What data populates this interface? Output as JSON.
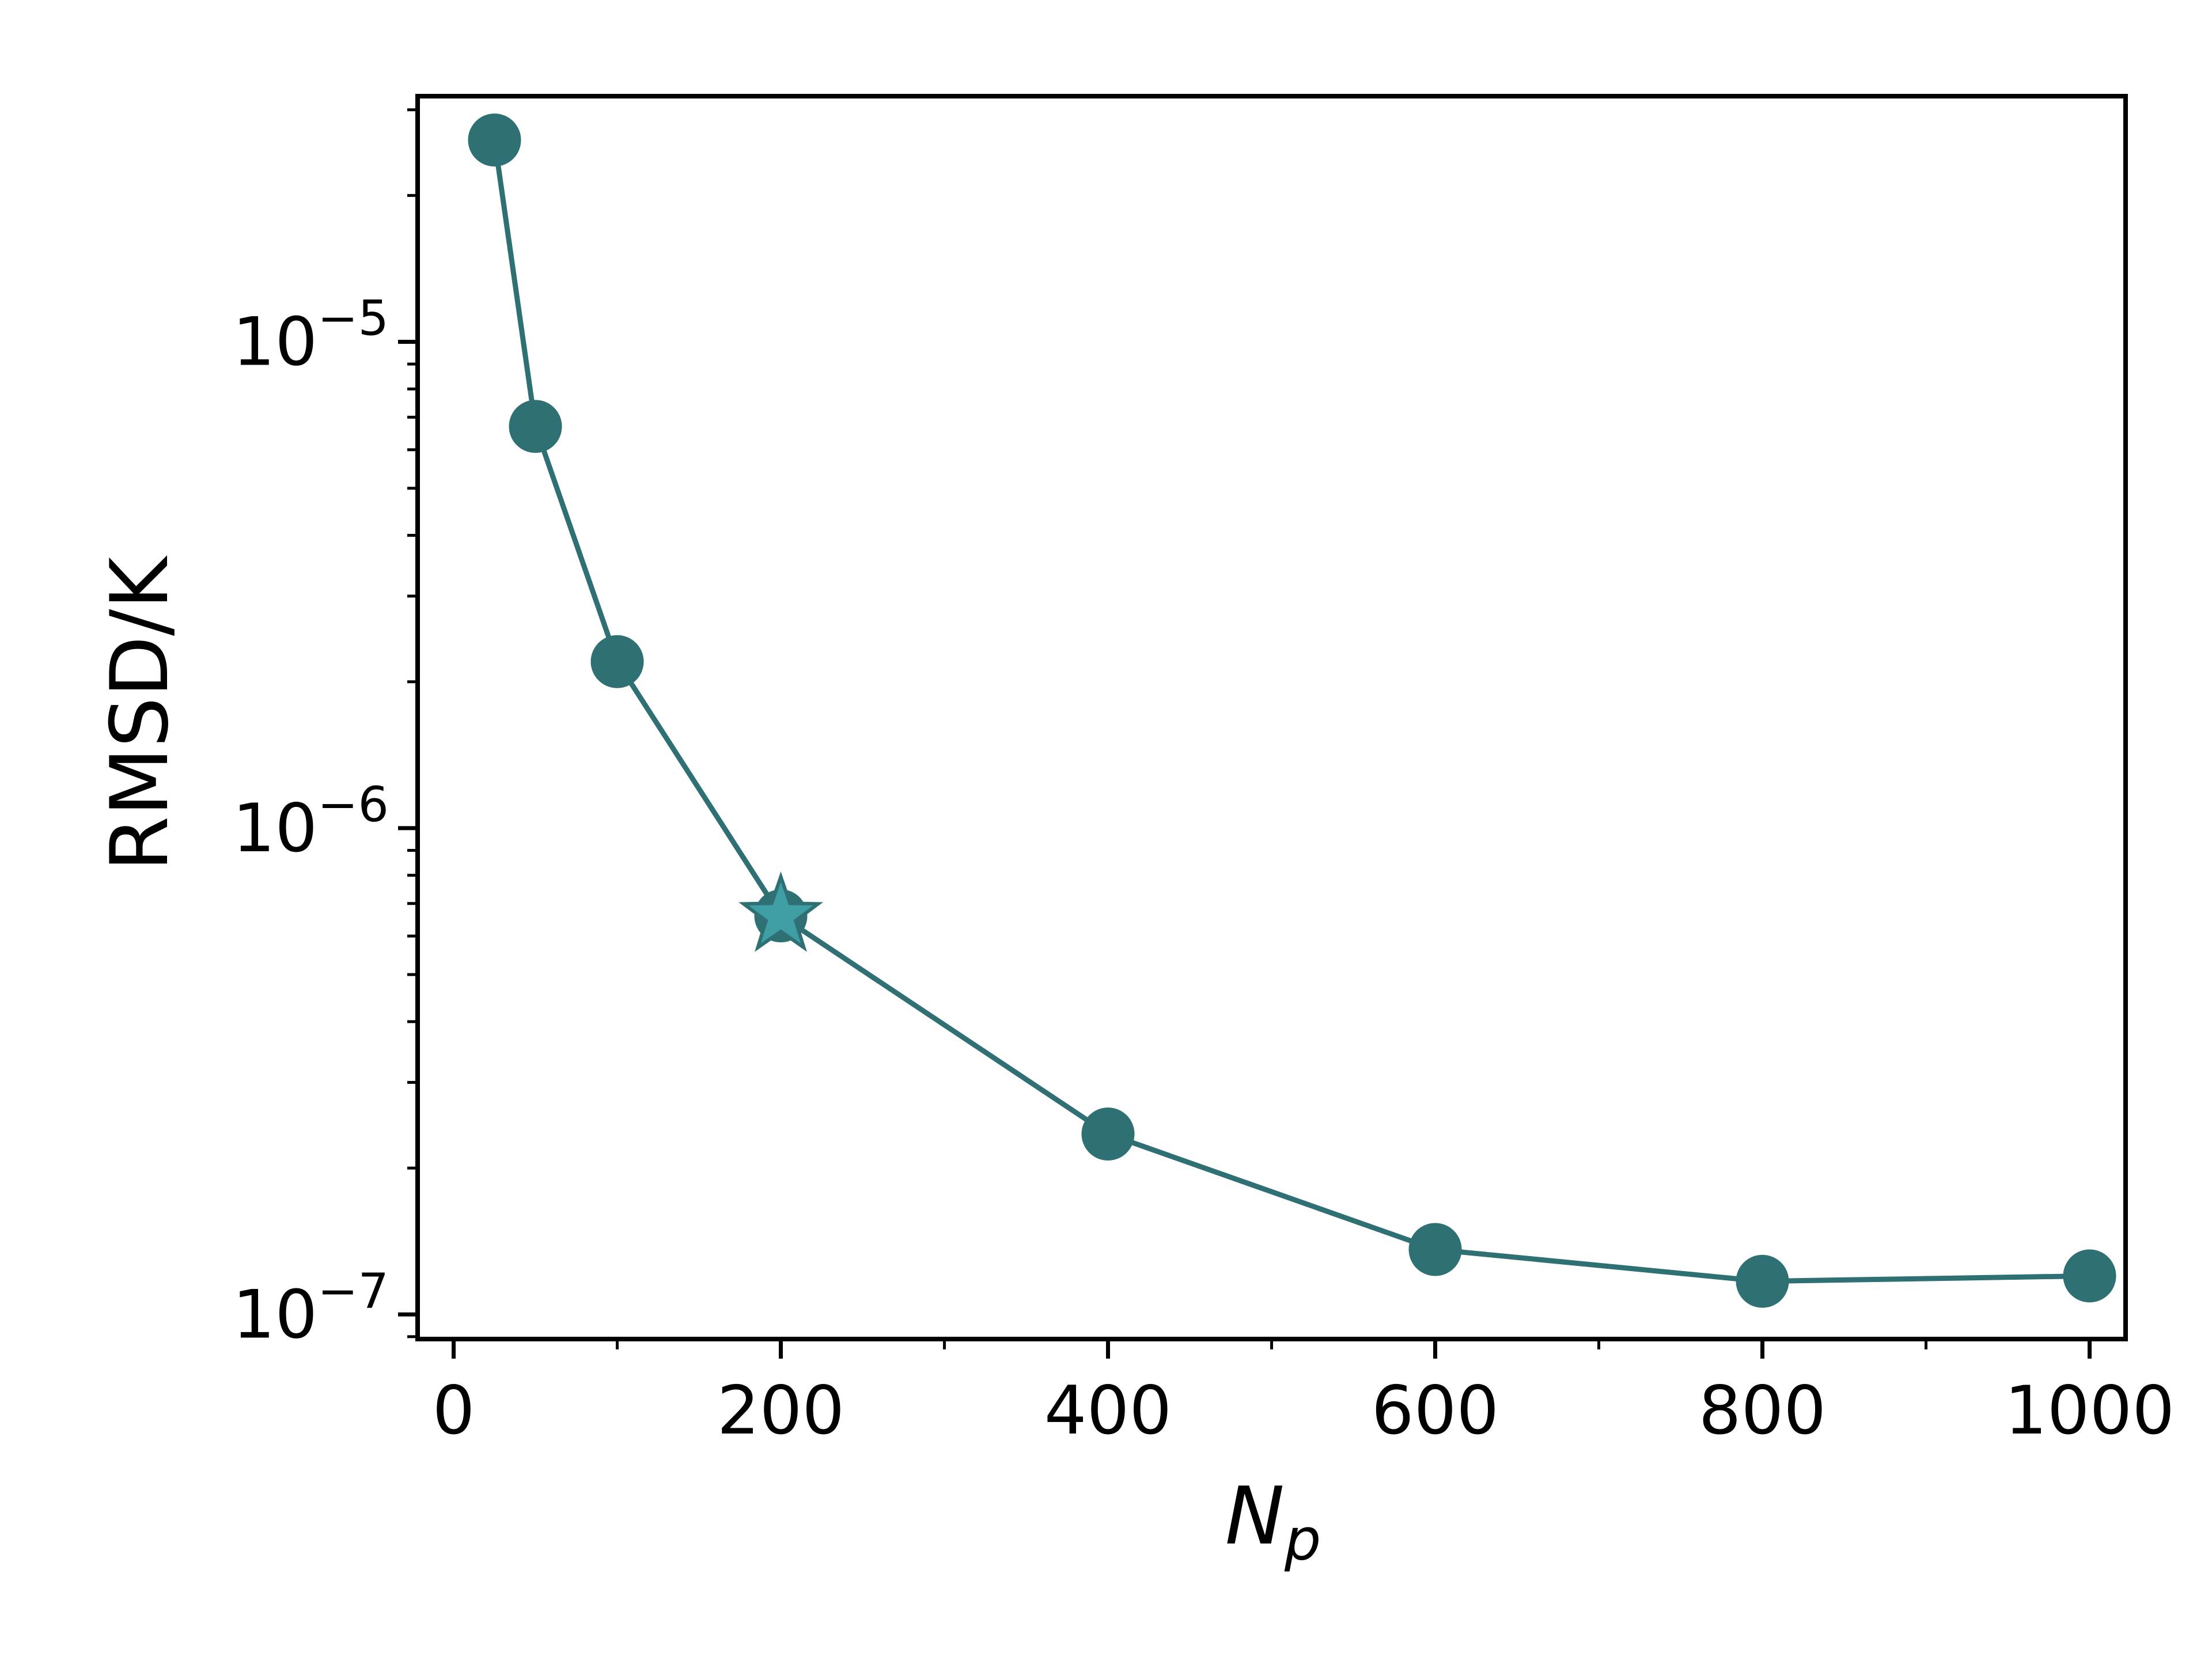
{
  "chart_data": {
    "type": "line",
    "title": "",
    "xlabel": "N",
    "xlabel_subscript": "p",
    "ylabel": "RMSD/K",
    "y_scale": "log",
    "xlim": [
      -22,
      1022
    ],
    "ylim": [
      8.9e-08,
      3.2e-05
    ],
    "x_ticks": [
      0,
      200,
      400,
      600,
      800,
      1000
    ],
    "x_tick_labels": [
      "0",
      "200",
      "400",
      "600",
      "800",
      "1000"
    ],
    "x_minor_ticks": [
      100,
      300,
      500,
      700,
      900
    ],
    "y_ticks": [
      1e-07,
      1e-06,
      1e-05
    ],
    "y_tick_labels": [
      {
        "base": "10",
        "exp": "−7"
      },
      {
        "base": "10",
        "exp": "−6"
      },
      {
        "base": "10",
        "exp": "−5"
      }
    ],
    "grid": false,
    "legend": "none",
    "series": [
      {
        "x": [
          25,
          50,
          100,
          200,
          400,
          600,
          800,
          1000
        ],
        "y": [
          2.6e-05,
          6.7e-06,
          2.2e-06,
          6.6e-07,
          2.35e-07,
          1.36e-07,
          1.17e-07,
          1.2e-07
        ],
        "color": "#2e7073",
        "marker": "circle",
        "highlight": {
          "x": 200,
          "y": 6.6e-07,
          "marker": "star",
          "color": "#3e9ea4"
        }
      }
    ]
  }
}
